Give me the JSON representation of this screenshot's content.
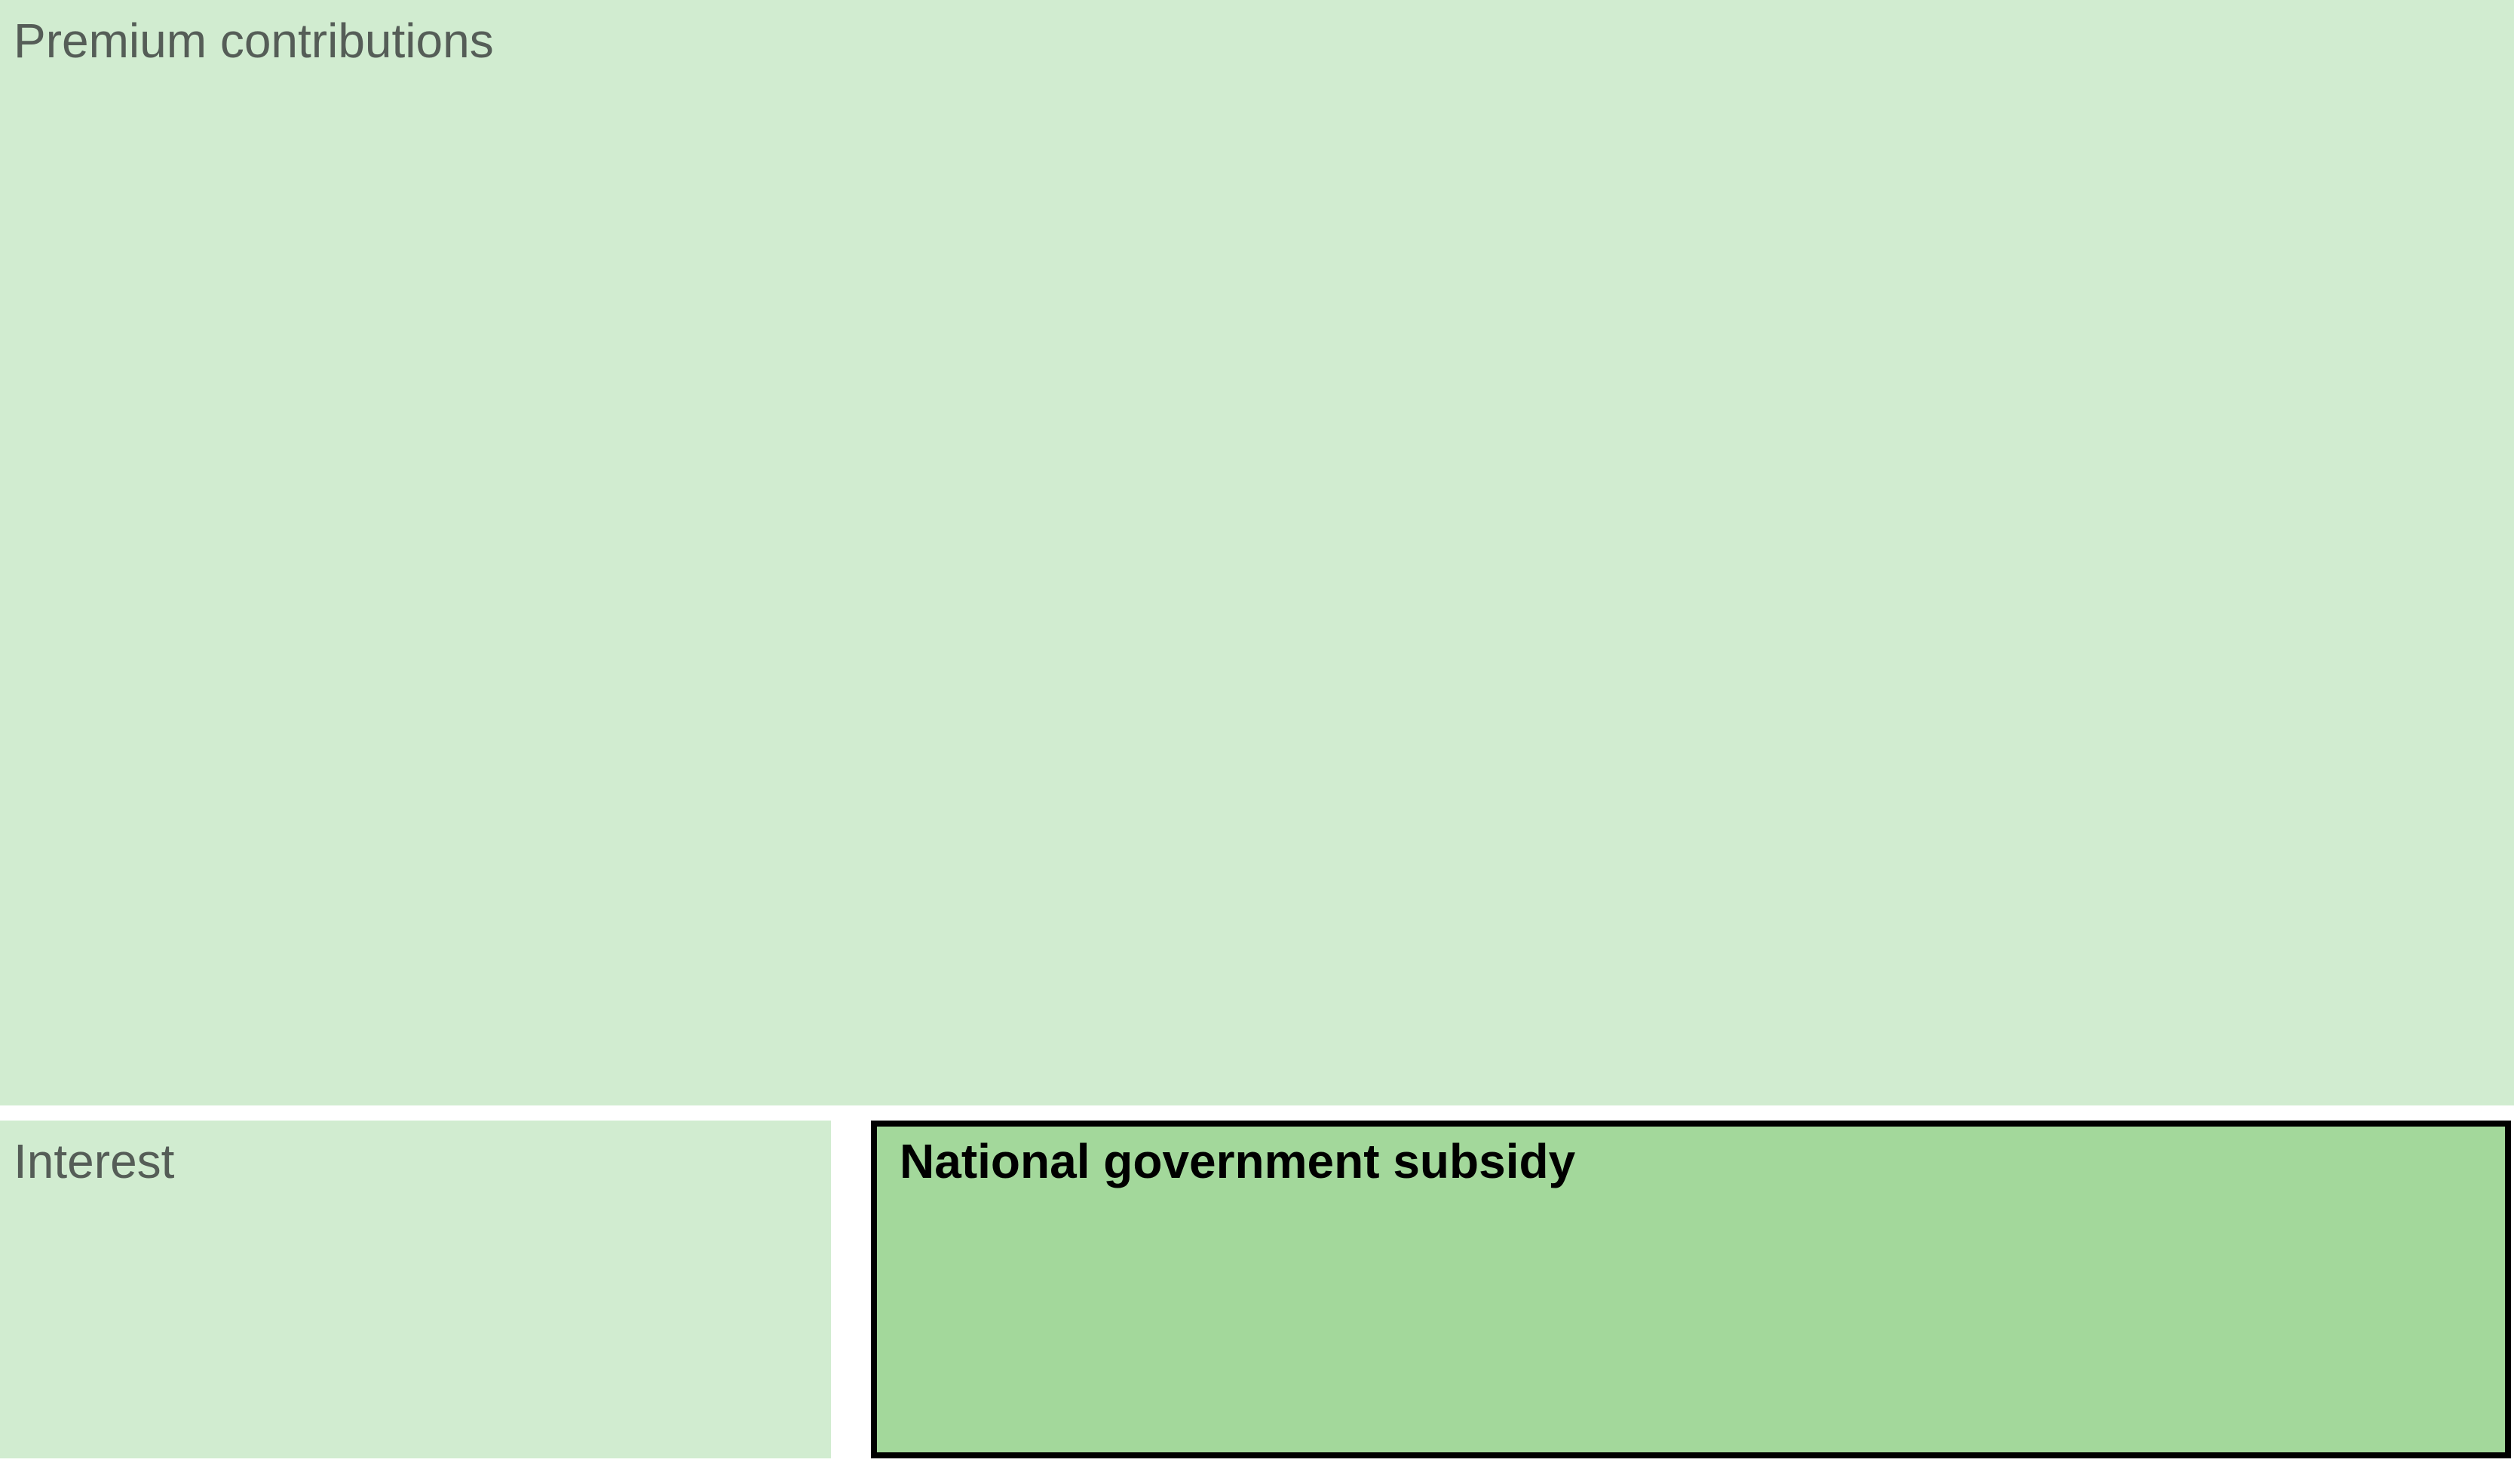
{
  "chart_data": {
    "type": "treemap",
    "title": "",
    "items": [
      {
        "name": "Premium contributions",
        "value": 1078600,
        "highlighted": false,
        "color": "#d1ecd0"
      },
      {
        "name": "Interest",
        "value": 115100,
        "highlighted": false,
        "color": "#d1ecd0"
      },
      {
        "name": "National government subsidy",
        "value": 228000,
        "highlighted": true,
        "color": "#a3d89b"
      }
    ]
  }
}
